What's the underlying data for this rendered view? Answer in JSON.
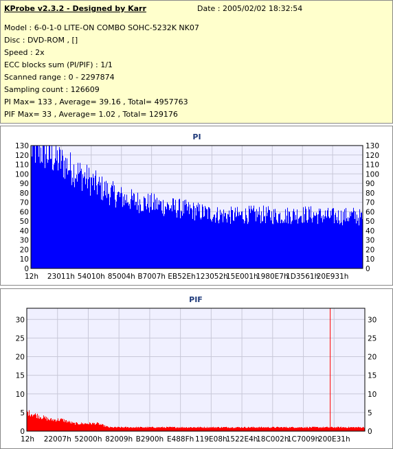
{
  "header": {
    "title": "KProbe v2.3.2 - Designed by Karr",
    "date": "Date : 2005/02/02 18:32:54",
    "lines": [
      "Model : 6-0-1-0 LITE-ON COMBO SOHC-5232K NK07",
      "Disc : DVD-ROM ,  []",
      "Speed : 2x",
      "ECC blocks sum (PI/PIF) : 1/1",
      "Scanned range : 0 - 2297874",
      "Sampling count : 126609",
      "PI Max= 133 , Average= 39.16 , Total= 4957763",
      "PIF Max= 33 , Average= 1.02 , Total= 129176"
    ]
  },
  "colors": {
    "pi_fill": "#0000ff",
    "pif_fill": "#ff0000",
    "plot_bg": "#f0f0ff",
    "grid": "#c8c8d8",
    "panel_bg": "#ffffcc"
  },
  "chart_data": [
    {
      "type": "area",
      "title": "PI",
      "ylim": [
        0,
        130
      ],
      "yticks": [
        0,
        10,
        20,
        30,
        40,
        50,
        60,
        70,
        80,
        90,
        100,
        110,
        120,
        130
      ],
      "xlim": [
        0,
        2297874
      ],
      "xtick_labels": [
        "12h",
        "23011h",
        "54010h",
        "85004h",
        "B7007h",
        "EB52Eh",
        "123052h",
        "15E001h",
        "1980E7h",
        "1D3561h",
        "20E931h"
      ],
      "grid": true,
      "x": [
        0,
        80000,
        160000,
        240000,
        320000,
        400000,
        480000,
        560000,
        640000,
        720000,
        800000,
        880000,
        960000,
        1040000,
        1120000,
        1200000,
        1280000,
        1360000,
        1440000,
        1520000,
        1600000,
        1680000,
        1760000,
        1840000,
        1920000,
        2000000,
        2080000,
        2160000,
        2240000,
        2297874
      ],
      "values": [
        125,
        122,
        115,
        108,
        100,
        92,
        84,
        78,
        73,
        70,
        68,
        66,
        64,
        62,
        60,
        58,
        56,
        55,
        55,
        56,
        56,
        55,
        55,
        56,
        56,
        55,
        54,
        54,
        55,
        52
      ]
    },
    {
      "type": "area",
      "title": "PIF",
      "ylim": [
        0,
        33
      ],
      "yticks": [
        0,
        5,
        10,
        15,
        20,
        25,
        30
      ],
      "xlim": [
        0,
        2297874
      ],
      "xtick_labels": [
        "12h",
        "22007h",
        "52000h",
        "82009h",
        "B2900h",
        "E488Fh",
        "119E08h",
        "1522E4h",
        "18C002h",
        "1C7009h",
        "200E31h"
      ],
      "grid": true,
      "x": [
        0,
        80000,
        160000,
        240000,
        320000,
        400000,
        480000,
        560000,
        640000,
        720000,
        800000,
        880000,
        960000,
        1040000,
        1120000,
        1200000,
        1280000,
        1360000,
        1440000,
        1520000,
        1600000,
        1680000,
        1760000,
        1840000,
        1920000,
        2000000,
        2080000,
        2160000,
        2240000,
        2297874
      ],
      "values": [
        5,
        4,
        3,
        3,
        2,
        2,
        2,
        1,
        1,
        1,
        1,
        1,
        1,
        1,
        1,
        1,
        1,
        1,
        1,
        1,
        1,
        1,
        1,
        1,
        1,
        1,
        1,
        1,
        1,
        1
      ],
      "spikes": [
        {
          "x": 2060000,
          "value": 33
        }
      ]
    }
  ]
}
